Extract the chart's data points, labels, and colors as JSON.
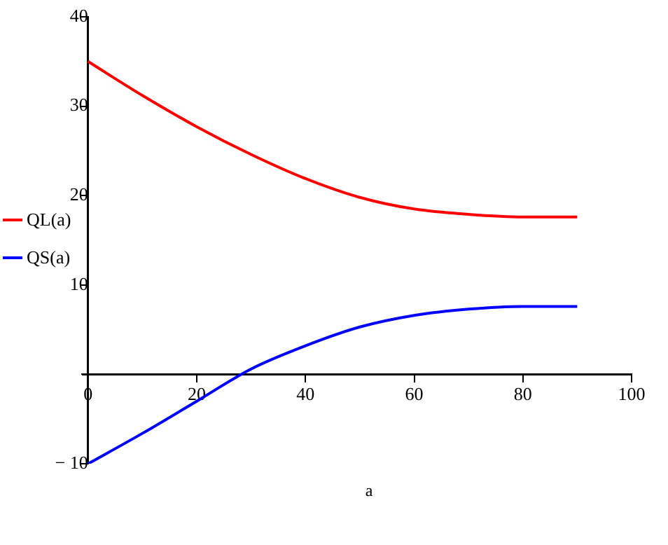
{
  "chart_data": {
    "type": "line",
    "xlabel": "a",
    "legend": "left",
    "grid": false,
    "marker": "none",
    "line_style": "solid",
    "xlim": [
      -1,
      100
    ],
    "xticks": [
      0,
      20,
      40,
      60,
      80,
      100
    ],
    "ylim": [
      -10,
      40
    ],
    "yticks": [
      -10,
      {
        "value": 0,
        "label": null
      },
      10,
      20,
      30,
      40
    ],
    "x": [
      0,
      10,
      20,
      30,
      40,
      50,
      60,
      70,
      80,
      90
    ],
    "series": [
      {
        "name": "QL(a)",
        "color": "#ff0000",
        "values": [
          35,
          31.2,
          27.7,
          24.6,
          21.9,
          19.8,
          18.5,
          17.9,
          17.6,
          17.6
        ]
      },
      {
        "name": "QS(a)",
        "color": "#0000ff",
        "values": [
          -10,
          -6.6,
          -3,
          0.6,
          3.2,
          5.3,
          6.6,
          7.3,
          7.6,
          7.6
        ]
      }
    ]
  }
}
